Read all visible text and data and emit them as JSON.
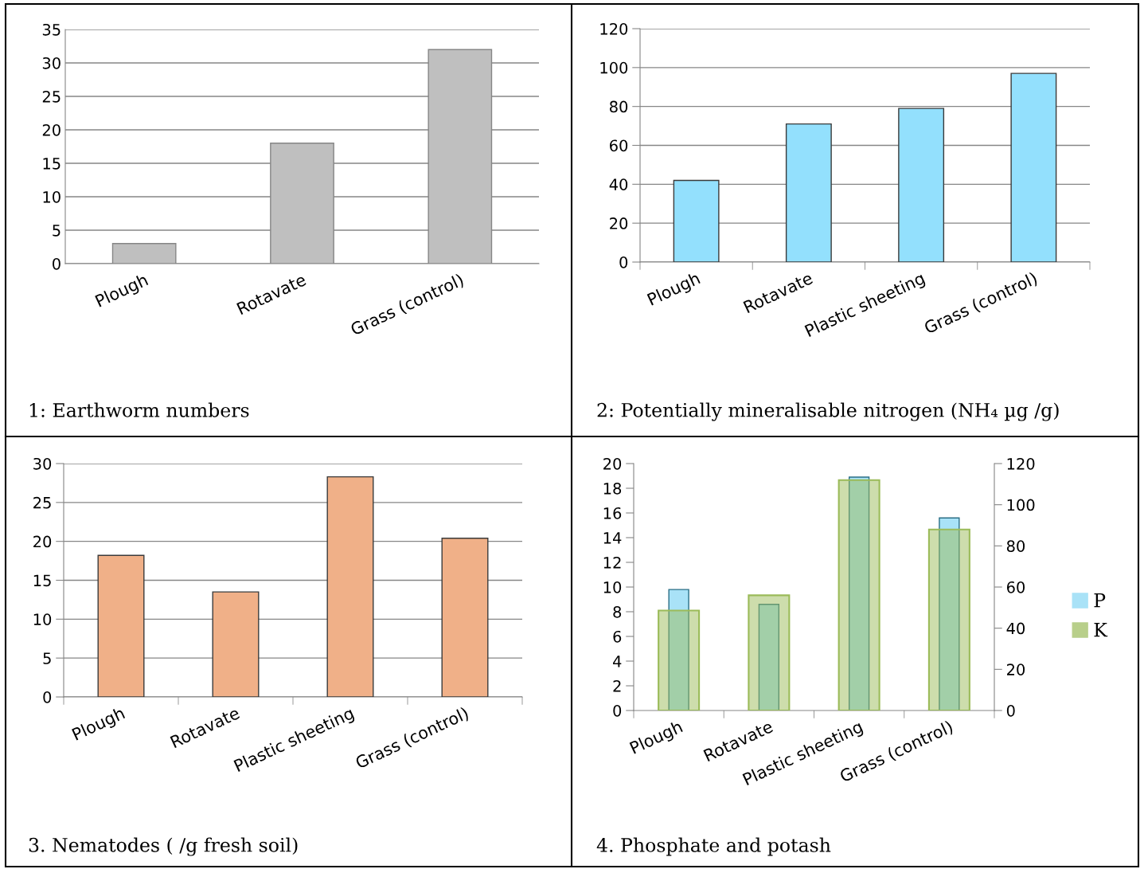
{
  "chart_data": [
    {
      "type": "bar",
      "title": "1: Earthworm numbers",
      "categories": [
        "Plough",
        "Rotavate",
        "Grass (control)"
      ],
      "values": [
        3,
        18,
        32
      ],
      "color": "#bfbfbf",
      "ylim": [
        0,
        35
      ],
      "yticks": [
        0,
        5,
        10,
        15,
        20,
        25,
        30,
        35
      ],
      "grid": "y"
    },
    {
      "type": "bar",
      "title": "2: Potentially mineralisable nitrogen (NH₄ µg /g)",
      "categories": [
        "Plough",
        "Rotavate",
        "Plastic sheeting",
        "Grass (control)"
      ],
      "values": [
        42,
        71,
        79,
        97
      ],
      "color": "#93e0fd",
      "ylim": [
        0,
        120
      ],
      "yticks": [
        0,
        20,
        40,
        60,
        80,
        100,
        120
      ],
      "grid": "y"
    },
    {
      "type": "bar",
      "title": "3. Nematodes ( /g fresh soil)",
      "categories": [
        "Plough",
        "Rotavate",
        "Plastic sheeting",
        "Grass (control)"
      ],
      "values": [
        18.2,
        13.5,
        28.3,
        20.4
      ],
      "color": "#f0b088",
      "ylim": [
        0,
        30
      ],
      "yticks": [
        0,
        5,
        10,
        15,
        20,
        25,
        30
      ],
      "grid": "y"
    },
    {
      "type": "bar",
      "title": "4. Phosphate and potash",
      "categories": [
        "Plough",
        "Rotavate",
        "Plastic sheeting",
        "Grass (control)"
      ],
      "series": [
        {
          "name": "P",
          "color": "#a9e2f7",
          "values": [
            9.8,
            8.6,
            18.9,
            15.6
          ]
        },
        {
          "name": "K",
          "color": "#9bbb59",
          "values": [
            48.6,
            56,
            112,
            88
          ],
          "axis": "y2"
        }
      ],
      "ylim": [
        0,
        20
      ],
      "yticks": [
        0,
        2,
        4,
        6,
        8,
        10,
        12,
        14,
        16,
        18,
        20
      ],
      "y2lim": [
        0,
        120
      ],
      "y2ticks": [
        0,
        20,
        40,
        60,
        80,
        100,
        120
      ],
      "legend": "right"
    }
  ]
}
